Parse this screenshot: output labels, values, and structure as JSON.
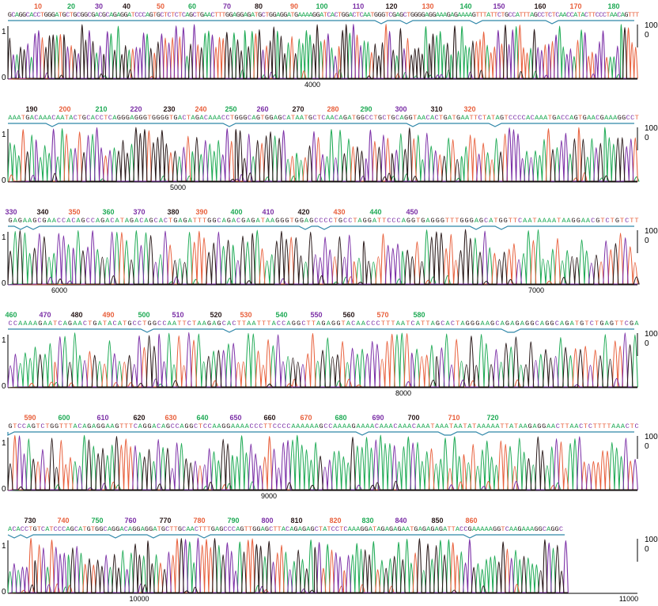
{
  "chart_data": {
    "type": "line",
    "title": "",
    "xlabel": "",
    "ylabel": "",
    "left_axis_ticks": [
      "1",
      "0"
    ],
    "right_axis_ticks": [
      "100",
      "0"
    ],
    "colors": {
      "A": "#1faa55",
      "C": "#7b2fa6",
      "G": "#2a1a1a",
      "T": "#e8603c",
      "quality": "#2e86a8"
    },
    "panels": [
      {
        "positions": [
          "10",
          "20",
          "30",
          "40",
          "50",
          "60",
          "70",
          "80",
          "90",
          "100",
          "110",
          "120",
          "130",
          "140",
          "150",
          "160",
          "170",
          "180"
        ],
        "sequence": "GCAGGCACCTGGGATGCTGCGGCGACGCAGAGGATCCCAGTGCTCTCTCAGCTGAACTTTGGAGGAGATGCTGGAGGATGAAAAGGATCACTGGACTCAATGGGTCGAGCTGGGGAGGAAAGAGAAAAGTTTATTCTGCCATTTAGCCTCTCAACCATACTTCCCTAACAGTTT",
        "scan_labels": [
          "4000"
        ]
      },
      {
        "positions": [
          "190",
          "200",
          "210",
          "220",
          "230",
          "240",
          "250",
          "260",
          "270",
          "280",
          "290",
          "300",
          "310",
          "320"
        ],
        "sequence": "AAATGACAAACAATACTGCACCTCAGGGAGGGTGGGGTGACTAGACAAACCTGGGCAGTGGAGCATAATGCTCAACAGATGGCCTGCTGCAGGTAACACTGATGAATTCTATAGTCCCCACAAATGACCAGTGAACGAAAGGCCT",
        "scan_labels": [
          "5000"
        ]
      },
      {
        "positions": [
          "330",
          "340",
          "350",
          "360",
          "370",
          "380",
          "390",
          "400",
          "410",
          "420",
          "430",
          "440",
          "450"
        ],
        "sequence": "GAGAAGCGAACCACAGCCAGACATAGACAGCACTGAGATTTGGCAGACGAGATAAGGGTGGAGCCCCTGCCTAGGATTCCCAGGTGAGGGTTTGGGAGCATGGTTCAATAAAATAAGGAACGTCTGTCTT",
        "scan_labels": [
          "6000",
          "7000"
        ]
      },
      {
        "positions": [
          "460",
          "470",
          "480",
          "490",
          "500",
          "510",
          "520",
          "530",
          "540",
          "550",
          "560",
          "570",
          "580"
        ],
        "sequence": "CCAAAAGAATCAGAACTGATACATGCCTGGCCAATTCTAAGAGCACTTAATTTACCAGGCTTAGAGGTACAACCCTTTAATCATTAGCACTAGGGAAGCAGAGAGGCAGGCAGATGTCTGAGTTCGA",
        "scan_labels": [
          "8000"
        ]
      },
      {
        "positions": [
          "590",
          "600",
          "610",
          "620",
          "630",
          "640",
          "650",
          "660",
          "670",
          "680",
          "690",
          "700",
          "710",
          "720"
        ],
        "sequence": "GTCCAGTCTGGTTTACAGAGGAAGTTTCAGGACAGCCAGGCTCCAAGGAAAACCCTTCCCCAAAAAAGCCAAAAGAAAACAAACAAACAAATAAATAATATAAAAATTATAAGAGGAACTTAACTCTTTTAAACTC",
        "scan_labels": [
          "9000"
        ]
      },
      {
        "positions": [
          "730",
          "740",
          "750",
          "760",
          "770",
          "780",
          "790",
          "800",
          "810",
          "820",
          "830",
          "840",
          "850",
          "860"
        ],
        "sequence": "ACACCTGTCATCCCAGCATGTGGCAGGACAGGAGGATGCTTGCAACTTTGAGCCCAGTTGGAGCTTACAGAGAGCTATCCTCAAAGGATAGAGAGAATGAGAGAGATTACCGAAAAAGGTCAAGAAAGGCAGGC",
        "scan_labels": [
          "10000",
          "11000"
        ]
      }
    ]
  }
}
